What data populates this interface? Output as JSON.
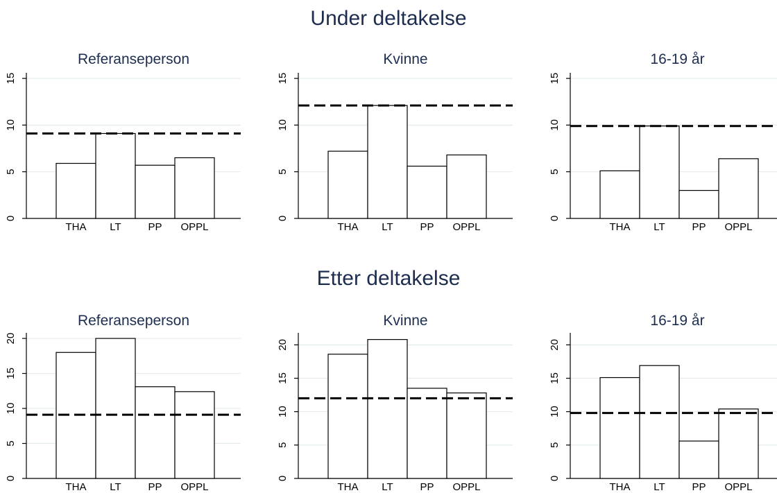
{
  "sections": {
    "top": {
      "title": "Under deltakelse"
    },
    "bottom": {
      "title": "Etter deltakelse"
    }
  },
  "chart_data": [
    {
      "type": "bar",
      "section": "Under deltakelse",
      "title": "Referanseperson",
      "categories": [
        "THA",
        "LT",
        "PP",
        "OPPL"
      ],
      "values": [
        5.9,
        9.1,
        5.7,
        6.5
      ],
      "reference_line": 9.1,
      "yticks": [
        0,
        5,
        10,
        15
      ],
      "ylim": [
        0,
        15.6
      ]
    },
    {
      "type": "bar",
      "section": "Under deltakelse",
      "title": "Kvinne",
      "categories": [
        "THA",
        "LT",
        "PP",
        "OPPL"
      ],
      "values": [
        7.2,
        12.1,
        5.6,
        6.8
      ],
      "reference_line": 12.1,
      "yticks": [
        0,
        5,
        10,
        15
      ],
      "ylim": [
        0,
        15.6
      ]
    },
    {
      "type": "bar",
      "section": "Under deltakelse",
      "title": "16-19 år",
      "categories": [
        "THA",
        "LT",
        "PP",
        "OPPL"
      ],
      "values": [
        5.1,
        9.9,
        3.0,
        6.4
      ],
      "reference_line": 9.9,
      "yticks": [
        0,
        5,
        10,
        15
      ],
      "ylim": [
        0,
        15.6
      ]
    },
    {
      "type": "bar",
      "section": "Etter deltakelse",
      "title": "Referanseperson",
      "categories": [
        "THA",
        "LT",
        "PP",
        "OPPL"
      ],
      "values": [
        18.0,
        20.0,
        13.1,
        12.4
      ],
      "reference_line": 9.1,
      "yticks": [
        0,
        5,
        10,
        15,
        20
      ],
      "ylim": [
        0,
        20.8
      ]
    },
    {
      "type": "bar",
      "section": "Etter deltakelse",
      "title": "Kvinne",
      "categories": [
        "THA",
        "LT",
        "PP",
        "OPPL"
      ],
      "values": [
        18.6,
        20.8,
        13.5,
        12.8
      ],
      "reference_line": 12.0,
      "yticks": [
        0,
        5,
        10,
        15,
        20
      ],
      "ylim": [
        0,
        21.8
      ]
    },
    {
      "type": "bar",
      "section": "Etter deltakelse",
      "title": "16-19 år",
      "categories": [
        "THA",
        "LT",
        "PP",
        "OPPL"
      ],
      "values": [
        15.1,
        16.9,
        5.6,
        10.4
      ],
      "reference_line": 9.8,
      "yticks": [
        0,
        5,
        10,
        15,
        20
      ],
      "ylim": [
        0,
        21.8
      ]
    }
  ]
}
